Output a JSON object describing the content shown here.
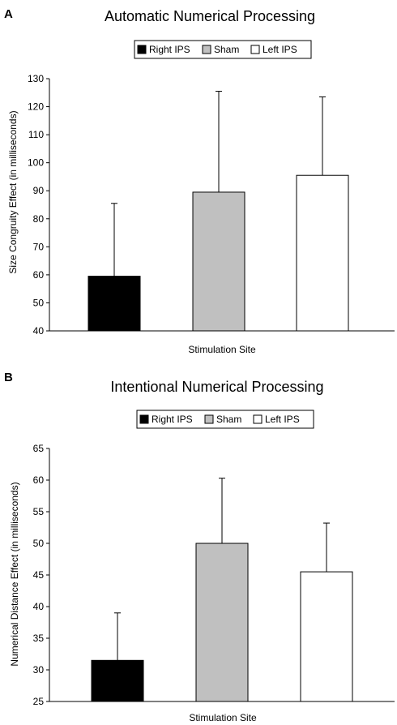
{
  "chart_data": [
    {
      "type": "bar",
      "panel": "A",
      "title": "Automatic Numerical Processing",
      "xlabel": "Stimulation Site",
      "ylabel": "Size Congruity Effect (in milliseconds)",
      "ylim": [
        40,
        130
      ],
      "yticks": [
        40,
        50,
        60,
        70,
        80,
        90,
        100,
        110,
        120,
        130
      ],
      "legend_position": "top",
      "categories": [
        "Right IPS",
        "Sham",
        "Left IPS"
      ],
      "series": [
        {
          "name": "Right IPS",
          "color": "#000000",
          "value": 59.5,
          "error": 26
        },
        {
          "name": "Sham",
          "color": "#c0c0c0",
          "value": 89.5,
          "error": 36
        },
        {
          "name": "Left IPS",
          "color": "#ffffff",
          "value": 95.5,
          "error": 28
        }
      ]
    },
    {
      "type": "bar",
      "panel": "B",
      "title": "Intentional Numerical Processing",
      "xlabel": "Stimulation Site",
      "ylabel": "Numerical Distance Effect (in milliseconds)",
      "ylim": [
        25,
        65
      ],
      "yticks": [
        25,
        30,
        35,
        40,
        45,
        50,
        55,
        60,
        65
      ],
      "legend_position": "top",
      "categories": [
        "Right IPS",
        "Sham",
        "Left IPS"
      ],
      "series": [
        {
          "name": "Right IPS",
          "color": "#000000",
          "value": 31.5,
          "error": 7.5
        },
        {
          "name": "Sham",
          "color": "#c0c0c0",
          "value": 50,
          "error": 10.3
        },
        {
          "name": "Left IPS",
          "color": "#ffffff",
          "value": 45.5,
          "error": 7.7
        }
      ]
    }
  ]
}
